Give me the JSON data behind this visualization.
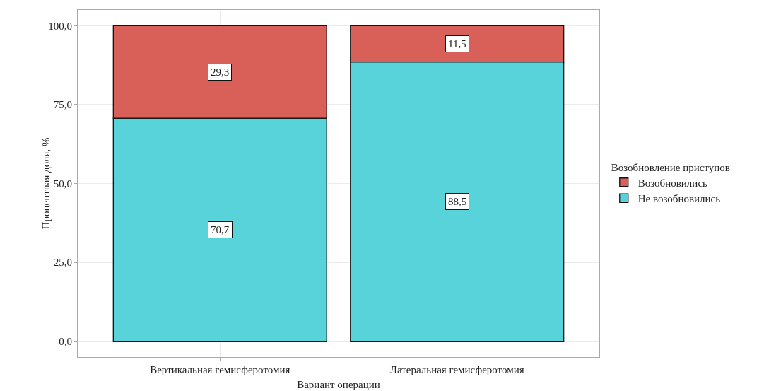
{
  "chart_data": {
    "type": "bar",
    "stacked": true,
    "xlabel": "Вариант операции",
    "ylabel": "Процентная доля, %",
    "legend_title": "Возобновление приступов",
    "categories": [
      "Вертикальная гемисферотомия",
      "Латеральная гемисферотомия"
    ],
    "series": [
      {
        "name": "Не возобновились",
        "color": "#59d3da",
        "values": [
          70.7,
          88.5
        ],
        "value_labels": [
          "70,7",
          "88,5"
        ]
      },
      {
        "name": "Возобновились",
        "color": "#d95f59",
        "values": [
          29.3,
          11.5
        ],
        "value_labels": [
          "29,3",
          "11,5"
        ]
      }
    ],
    "ylim": [
      -5,
      105
    ],
    "yticks": [
      {
        "value": 0,
        "label": "0,0"
      },
      {
        "value": 25,
        "label": "25,0"
      },
      {
        "value": 50,
        "label": "50,0"
      },
      {
        "value": 75,
        "label": "75,0"
      },
      {
        "value": 100,
        "label": "100,0"
      }
    ],
    "grid": true,
    "legend": "right"
  }
}
